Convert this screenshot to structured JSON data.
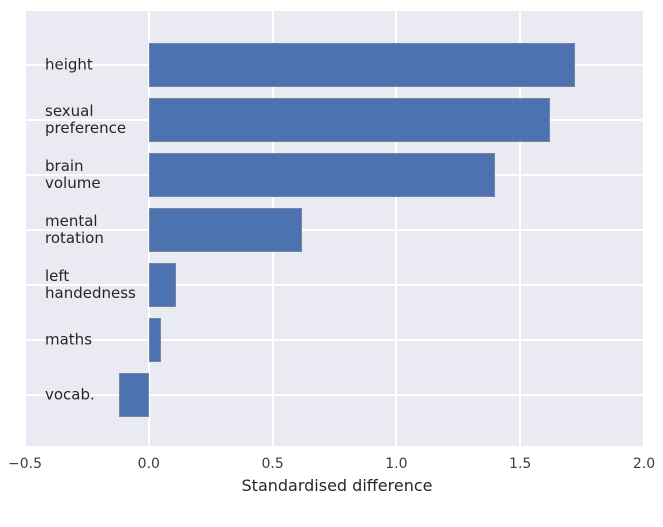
{
  "chart_data": {
    "type": "bar",
    "orientation": "horizontal",
    "title": "",
    "xlabel": "Standardised difference",
    "ylabel": "",
    "categories": [
      "height",
      "sexual\npreference",
      "brain\nvolume",
      "mental\nrotation",
      "left\nhandedness",
      "maths",
      "vocab."
    ],
    "values": [
      1.72,
      1.62,
      1.4,
      0.62,
      0.11,
      0.05,
      -0.12
    ],
    "xlim": [
      -0.5,
      2.0
    ],
    "x_ticks": [
      -0.5,
      0.0,
      0.5,
      1.0,
      1.5,
      2.0
    ],
    "x_tick_labels": [
      "−0.5",
      "0.0",
      "0.5",
      "1.0",
      "1.5",
      "2.0"
    ],
    "grid": true,
    "legend": false,
    "style": "seaborn-darkgrid",
    "colors": {
      "bar_fill": "#4C72B0",
      "bar_edge": "#7A84A2",
      "plot_background": "#EAEAF2",
      "grid_line": "#FFFFFF",
      "figure_background": "#FFFFFF",
      "label_text": "#262626",
      "tick_text": "#3D3D3D"
    }
  }
}
